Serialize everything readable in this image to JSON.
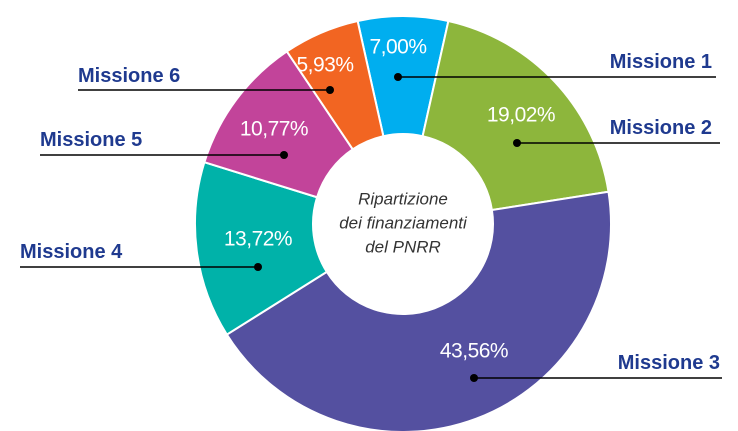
{
  "chart_data": {
    "type": "donut",
    "center_label": [
      "Ripartizione",
      "dei finanziamenti",
      "del PNRR"
    ],
    "categories": [
      "Missione 1",
      "Missione 2",
      "Missione 3",
      "Missione 4",
      "Missione 5",
      "Missione 6"
    ],
    "values": [
      7.0,
      19.02,
      43.56,
      13.72,
      10.77,
      5.93
    ],
    "value_labels": [
      "7,00%",
      "19,02%",
      "43,56%",
      "13,72%",
      "10,77%",
      "5,93%"
    ],
    "colors": [
      "#00aeef",
      "#8db63c",
      "#5450a0",
      "#00b2a9",
      "#c2449a",
      "#f26522"
    ]
  }
}
